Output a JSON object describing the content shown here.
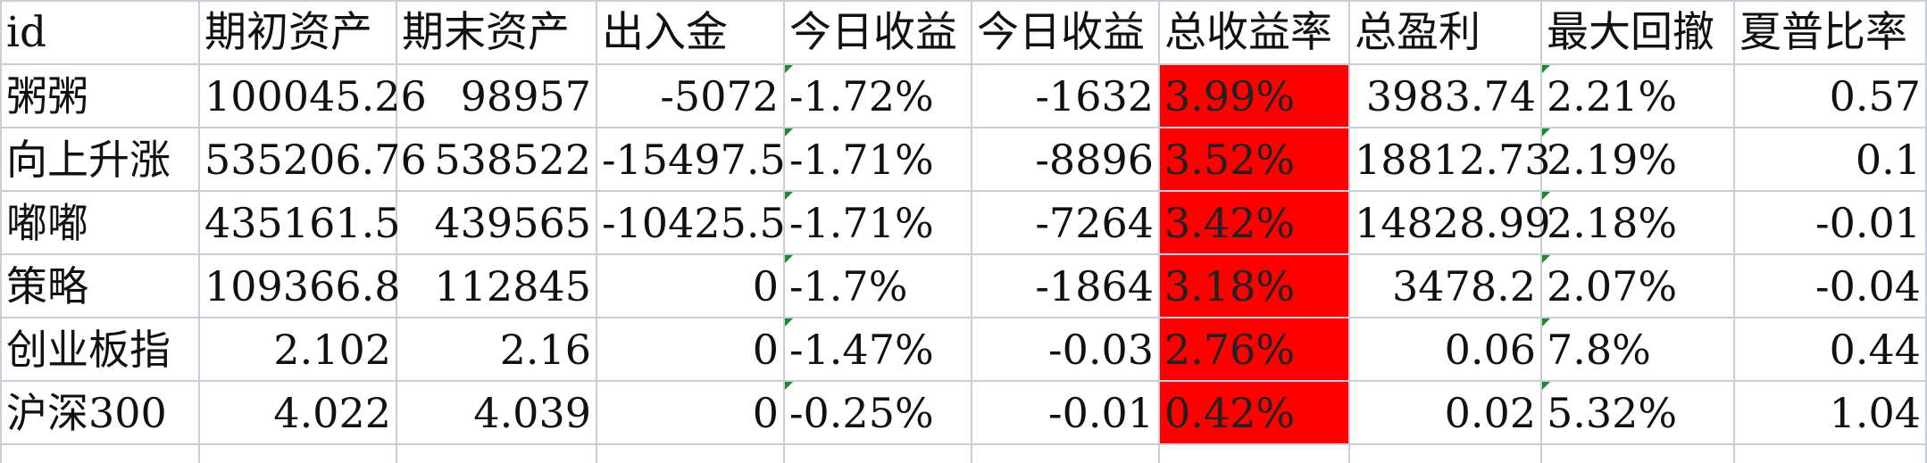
{
  "sheet": {
    "headers": [
      "id",
      "期初资产",
      "期末资产",
      "出入金",
      "今日收益",
      "今日收益",
      "总收益率",
      "总盈利",
      "最大回撤",
      "夏普比率"
    ],
    "rows": [
      [
        "粥粥",
        "100045.26",
        "98957",
        "-5072",
        "-1.72%",
        "-1632",
        "3.99%",
        "3983.74",
        "2.21%",
        "0.57"
      ],
      [
        "向上升涨",
        "535206.76",
        "538522",
        "-15497.5",
        "-1.71%",
        "-8896",
        "3.52%",
        "18812.73",
        "2.19%",
        "0.1"
      ],
      [
        "嘟嘟",
        "435161.5",
        "439565",
        "-10425.5",
        "-1.71%",
        "-7264",
        "3.42%",
        "14828.99",
        "2.18%",
        "-0.01"
      ],
      [
        "策略",
        "109366.8",
        "112845",
        "0",
        "-1.7%",
        "-1864",
        "3.18%",
        "3478.2",
        "2.07%",
        "-0.04"
      ],
      [
        "创业板指",
        "2.102",
        "2.16",
        "0",
        "-1.47%",
        "-0.03",
        "2.76%",
        "0.06",
        "7.8%",
        "0.44"
      ],
      [
        "沪深300",
        "4.022",
        "4.039",
        "0",
        "-0.25%",
        "-0.01",
        "0.42%",
        "0.02",
        "5.32%",
        "1.04"
      ]
    ],
    "highlight_color": "#ff0000",
    "indicator_color": "#1d8a2a",
    "gridline_color": "#c6cddb"
  }
}
